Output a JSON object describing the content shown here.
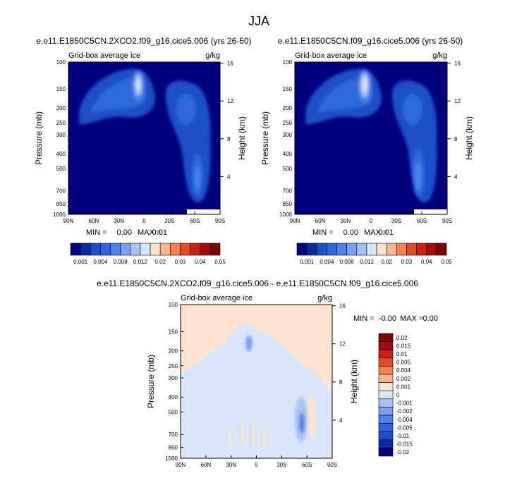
{
  "colors": {
    "colorbar_abs": [
      "#00007f",
      "#0a2aa0",
      "#1e4fc8",
      "#2d67df",
      "#4c82ea",
      "#7b9ff0",
      "#a9c1f5",
      "#d7e6fb",
      "#fde3cf",
      "#f7b591",
      "#f0834f",
      "#e04d22",
      "#c92015",
      "#a30c0c",
      "#7a0505"
    ],
    "colorbar_diff": [
      "#00007f",
      "#0a2aa0",
      "#1e4fc8",
      "#2d67df",
      "#4c82ea",
      "#7b9ff0",
      "#a9c1f5",
      "#d7e6fb",
      "#fde3cf",
      "#f7b591",
      "#f0834f",
      "#e04d22",
      "#c92015",
      "#a30c0c",
      "#7a0505"
    ]
  },
  "chart_data": [
    {
      "type": "contour",
      "id": "panel_top_left",
      "main_title": "JJA",
      "title": "e.e11.E1850C5CN.2XCO2.f09_g16.cice5.006 (yrs 26-50)",
      "left_label": "Grid-box average ice",
      "right_label": "g/kg",
      "xlabel": "",
      "ylabel": "Pressure (mb)",
      "ylabel_right": "Height (km)",
      "x_ticks": [
        "90N",
        "60N",
        "30N",
        "0",
        "30S",
        "60S",
        "90S"
      ],
      "y_ticks": [
        "100",
        "150",
        "200",
        "250",
        "300",
        "400",
        "500",
        "700",
        "850",
        "1000"
      ],
      "y_ticks_right": [
        "16",
        "12",
        "8",
        "4"
      ],
      "stats": {
        "min_label": "MIN =",
        "min": "0.00",
        "max_label": "MAX =",
        "max": "0.01"
      },
      "colorbar_labels": [
        "0.001",
        "0.004",
        "0.008",
        "0.012",
        "0.02",
        "0.03",
        "0.04",
        "0.05"
      ]
    },
    {
      "type": "contour",
      "id": "panel_top_right",
      "title": "e.e11.E1850C5CN.f09_g16.cice5.006 (yrs 26-50)",
      "left_label": "Grid-box average ice",
      "right_label": "g/kg",
      "xlabel": "",
      "ylabel": "Pressure (mb)",
      "ylabel_right": "Height (km)",
      "x_ticks": [
        "90N",
        "60N",
        "30N",
        "0",
        "30S",
        "60S",
        "90S"
      ],
      "y_ticks": [
        "100",
        "150",
        "200",
        "250",
        "300",
        "400",
        "500",
        "700",
        "850",
        "1000"
      ],
      "y_ticks_right": [
        "16",
        "12",
        "8",
        "4"
      ],
      "stats": {
        "min_label": "MIN =",
        "min": "0.00",
        "max_label": "MAX =",
        "max": "0.01"
      },
      "colorbar_labels": [
        "0.001",
        "0.004",
        "0.008",
        "0.012",
        "0.02",
        "0.03",
        "0.04",
        "0.05"
      ]
    },
    {
      "type": "contour",
      "id": "panel_difference",
      "title": "e.e11.E1850C5CN.2XCO2.f09_g16.cice5.006 - e.e11.E1850C5CN.f09_g16.cice5.006",
      "left_label": "Grid-box average ice",
      "right_label": "g/kg",
      "xlabel": "",
      "ylabel": "Pressure (mb)",
      "ylabel_right": "Height (km)",
      "x_ticks": [
        "90N",
        "60N",
        "30N",
        "0",
        "30S",
        "60S",
        "90S"
      ],
      "y_ticks": [
        "100",
        "150",
        "200",
        "250",
        "300",
        "400",
        "500",
        "700",
        "850",
        "1000"
      ],
      "y_ticks_right": [
        "16",
        "12",
        "8",
        "4"
      ],
      "stats": {
        "min_label": "MIN =",
        "min": "-0.00",
        "max_label": "MAX =",
        "max": "0.00"
      },
      "colorbar_labels": [
        "0.02",
        "0.015",
        "0.01",
        "0.005",
        "0.004",
        "0.002",
        "0.001",
        "0",
        "-0.001",
        "-0.002",
        "-0.004",
        "-0.005",
        "-0.01",
        "-0.015",
        "-0.02"
      ]
    }
  ]
}
